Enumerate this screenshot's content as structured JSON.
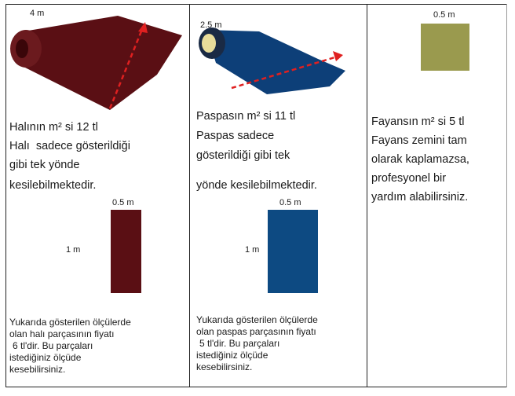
{
  "columns": [
    {
      "image_label": "4 m",
      "price_text": "Halının m² si 12 tl",
      "description_lines": [
        "Halı  sadece gösterildiği",
        "gibi tek yönde",
        "kesilebilmektedir."
      ],
      "piece_width_label": "0.5 m",
      "piece_height_label": "1 m",
      "footer_lines": [
        "Yukarıda gösterilen ölçülerde",
        "olan halı parçasının fiyatı",
        "6 tl'dir. Bu parçaları",
        "istediğiniz ölçüde",
        "kesebilirsiniz."
      ]
    },
    {
      "image_label": "2.5 m",
      "price_text": "Paspasın m² si 11 tl",
      "description_lines": [
        "Paspas sadece",
        "gösterildiği gibi tek",
        "yönde kesilebilmektedir."
      ],
      "piece_width_label": "0.5 m",
      "piece_height_label": "1 m",
      "footer_lines": [
        "Yukarıda gösterilen ölçülerde",
        "olan paspas parçasının fiyatı",
        "5 tl'dir. Bu parçaları",
        "istediğiniz ölçüde",
        "kesebilirsiniz."
      ]
    },
    {
      "image_label": "0.5 m",
      "price_text": "Fayansın m² si 5 tl",
      "description_lines": [
        "Fayans zemini tam",
        "olarak kaplamazsa,",
        "profesyonel bir",
        "yardım alabilirsiniz."
      ]
    }
  ]
}
